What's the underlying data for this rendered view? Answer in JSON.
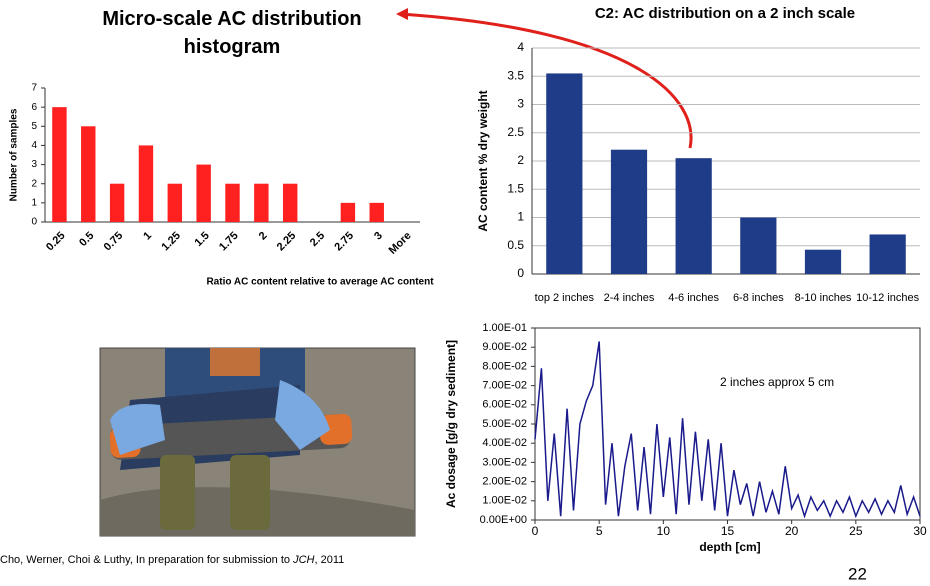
{
  "chart_data": [
    {
      "type": "bar",
      "title": "Micro-scale AC distribution histogram",
      "y_label": "Number of samples",
      "x_label": "Ratio AC content relative to average AC content",
      "categories": [
        "0.25",
        "0.5",
        "0.75",
        "1",
        "1.25",
        "1.5",
        "1.75",
        "2",
        "2.25",
        "2.5",
        "2.75",
        "3",
        "More"
      ],
      "values": [
        6,
        5,
        2,
        4,
        2,
        3,
        2,
        2,
        2,
        0,
        1,
        1,
        0
      ],
      "color": "#ff2020",
      "ylim": [
        0,
        7
      ],
      "yticks": [
        0,
        1,
        2,
        3,
        4,
        5,
        6,
        7
      ],
      "grid": false
    },
    {
      "type": "bar",
      "title": "C2: AC distribution on a 2 inch scale",
      "y_label": "AC content % dry weight",
      "categories": [
        "top 2 inches",
        "2-4 inches",
        "4-6 inches",
        "6-8 inches",
        "8-10 inches",
        "10-12 inches"
      ],
      "values": [
        3.55,
        2.2,
        2.05,
        1.0,
        0.43,
        0.7
      ],
      "color": "#1f3c88",
      "ylim": [
        0,
        4
      ],
      "yticks": [
        0,
        0.5,
        1,
        1.5,
        2,
        2.5,
        3,
        3.5,
        4
      ],
      "grid": true
    },
    {
      "type": "line",
      "y_label": "Ac dosage [g/g dry sediment]",
      "x_label": "depth [cm]",
      "annotation": "2 inches approx 5 cm",
      "x": [
        0,
        0.5,
        1,
        1.5,
        2,
        2.5,
        3,
        3.5,
        4,
        4.5,
        5,
        5.5,
        6,
        6.5,
        7,
        7.5,
        8,
        8.5,
        9,
        9.5,
        10,
        10.5,
        11,
        11.5,
        12,
        12.5,
        13,
        13.5,
        14,
        14.5,
        15,
        15.5,
        16,
        16.5,
        17,
        17.5,
        18,
        18.5,
        19,
        19.5,
        20,
        20.5,
        21,
        21.5,
        22,
        22.5,
        23,
        23.5,
        24,
        24.5,
        25,
        25.5,
        26,
        26.5,
        27,
        27.5,
        28,
        28.5,
        29,
        29.5,
        30
      ],
      "series": [
        {
          "name": "Ac dosage",
          "color": "#1a1a8c",
          "values": [
            0.042,
            0.079,
            0.01,
            0.045,
            0.002,
            0.058,
            0.005,
            0.05,
            0.062,
            0.07,
            0.093,
            0.008,
            0.04,
            0.002,
            0.028,
            0.045,
            0.005,
            0.038,
            0.003,
            0.05,
            0.012,
            0.043,
            0.003,
            0.053,
            0.008,
            0.046,
            0.01,
            0.042,
            0.005,
            0.04,
            0.002,
            0.026,
            0.008,
            0.019,
            0.002,
            0.02,
            0.004,
            0.015,
            0.003,
            0.028,
            0.006,
            0.013,
            0.002,
            0.012,
            0.005,
            0.01,
            0.002,
            0.01,
            0.004,
            0.012,
            0.002,
            0.01,
            0.004,
            0.011,
            0.003,
            0.01,
            0.004,
            0.018,
            0.003,
            0.012,
            0.002
          ]
        }
      ],
      "xlim": [
        0,
        30
      ],
      "xticks": [
        0,
        5,
        10,
        15,
        20,
        25,
        30
      ],
      "ylim": [
        0,
        0.1
      ],
      "yticks": [
        {
          "value": 0,
          "label": "0.00E+00"
        },
        {
          "value": 0.01,
          "label": "1.00E-02"
        },
        {
          "value": 0.02,
          "label": "2.00E-02"
        },
        {
          "value": 0.03,
          "label": "3.00E-02"
        },
        {
          "value": 0.04,
          "label": "4.00E-02"
        },
        {
          "value": 0.05,
          "label": "5.00E-02"
        },
        {
          "value": 0.06,
          "label": "6.00E-02"
        },
        {
          "value": 0.07,
          "label": "7.00E-02"
        },
        {
          "value": 0.08,
          "label": "8.00E-02"
        },
        {
          "value": 0.09,
          "label": "9.00E-02"
        },
        {
          "value": 0.1,
          "label": "1.00E-01"
        }
      ],
      "grid": false
    }
  ],
  "citation": [
    "Cho, Werner, Choi & Luthy, In preparation for submission to ",
    "JCH",
    ", 2011"
  ],
  "page_number": "22"
}
